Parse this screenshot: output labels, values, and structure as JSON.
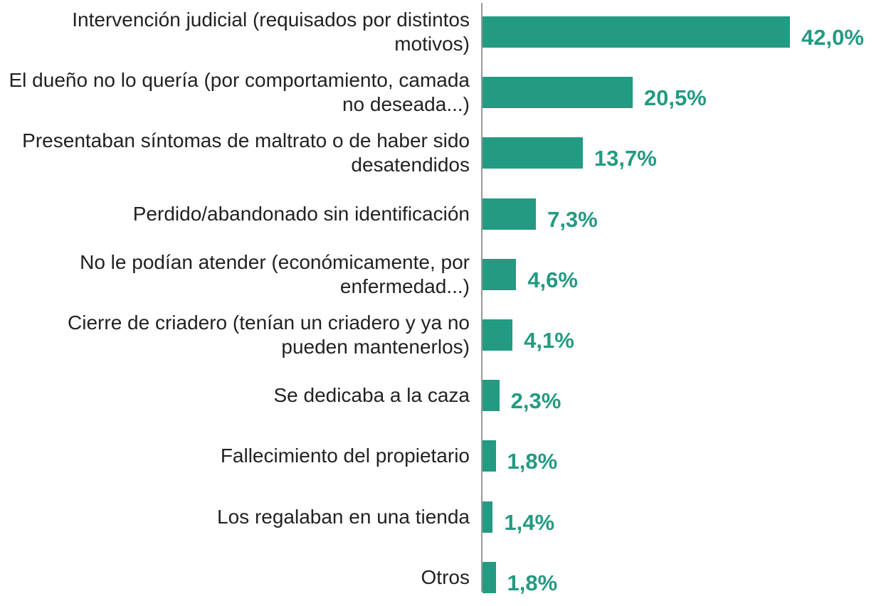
{
  "chart_data": {
    "type": "bar",
    "orientation": "horizontal",
    "categories": [
      "Intervención judicial (requisados por distintos motivos)",
      "El dueño no lo quería (por comportamiento, camada no deseada...)",
      "Presentaban síntomas de maltrato o de haber sido desatendidos",
      "Perdido/abandonado sin identificación",
      "No le podían atender (económicamente, por enfermedad...)",
      "Cierre de criadero (tenían un criadero y ya no pueden mantenerlos)",
      "Se dedicaba a la caza",
      "Fallecimiento del propietario",
      "Los regalaban en una tienda",
      "Otros"
    ],
    "values": [
      42.0,
      20.5,
      13.7,
      7.3,
      4.6,
      4.1,
      2.3,
      1.8,
      1.4,
      1.8
    ],
    "value_labels": [
      "42,0%",
      "20,5%",
      "13,7%",
      "7,3%",
      "4,6%",
      "4,1%",
      "2,3%",
      "1,8%",
      "1,4%",
      "1,8%"
    ],
    "color": "#239a82",
    "xlim": [
      0,
      42
    ]
  }
}
